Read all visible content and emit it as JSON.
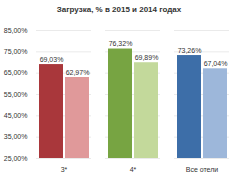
{
  "chart_data": {
    "type": "bar",
    "title": "Загрузка, % в 2015 и 2014 годах",
    "categories": [
      "3*",
      "4*",
      "Все отели"
    ],
    "series": [
      {
        "colors": [
          "#a9373b",
          "#77a442",
          "#3d6ea8"
        ],
        "values": [
          69.03,
          76.32,
          73.26
        ],
        "value_labels": [
          "69,03%",
          "76,32%",
          "73,26%"
        ]
      },
      {
        "colors": [
          "#e0999a",
          "#c3d99b",
          "#9db7da"
        ],
        "values": [
          62.97,
          69.89,
          67.04
        ],
        "value_labels": [
          "62,97%",
          "69,89%",
          "67,04%"
        ]
      }
    ],
    "ylim": [
      25,
      85
    ],
    "yticks": [
      {
        "value": 25,
        "label": "25,00%"
      },
      {
        "value": 35,
        "label": "35,00%"
      },
      {
        "value": 45,
        "label": "45,00%"
      },
      {
        "value": 55,
        "label": "55,00%"
      },
      {
        "value": 65,
        "label": "65,00%"
      },
      {
        "value": 75,
        "label": "75,00%"
      },
      {
        "value": 85,
        "label": "85,00%"
      }
    ],
    "grid": true,
    "data_labels": true
  }
}
